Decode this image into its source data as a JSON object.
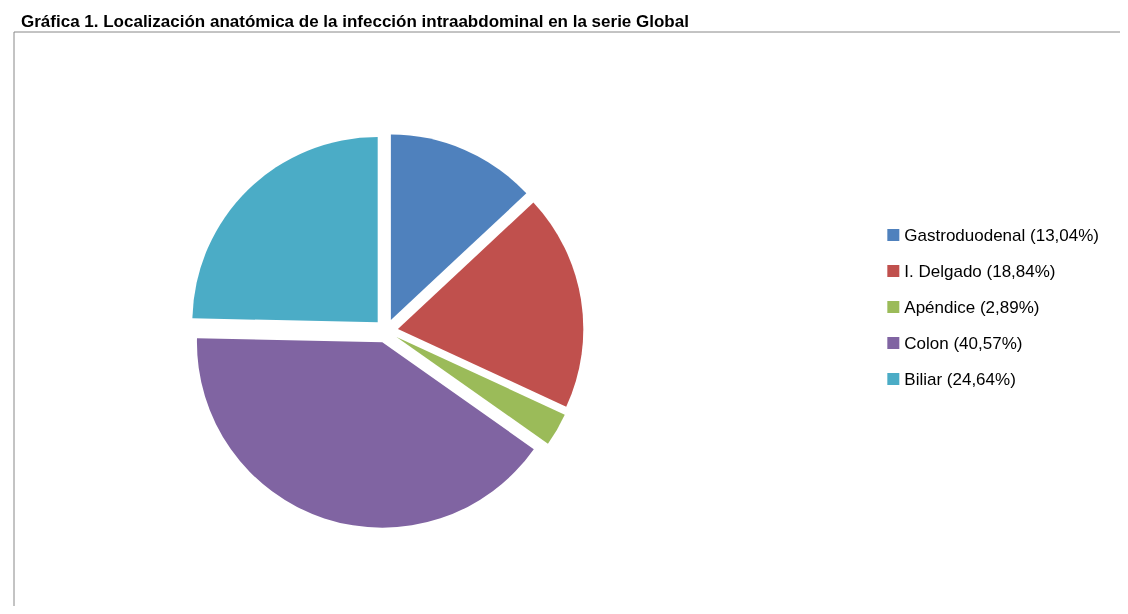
{
  "chart_data": {
    "type": "pie",
    "title": "Gráfica 1. Localización anatómica de la infección intraabdominal en la serie Global",
    "categories": [
      "Gastroduodenal (13,04%)",
      "I. Delgado (18,84%)",
      "Apéndice (2,89%)",
      "Colon (40,57%)",
      "Biliar (24,64%)"
    ],
    "values": [
      13.04,
      18.84,
      2.89,
      40.57,
      24.64
    ],
    "colors": [
      "#4f81bd",
      "#c0504d",
      "#9bbb59",
      "#8064a2",
      "#4bacc6"
    ],
    "legend": "right"
  }
}
